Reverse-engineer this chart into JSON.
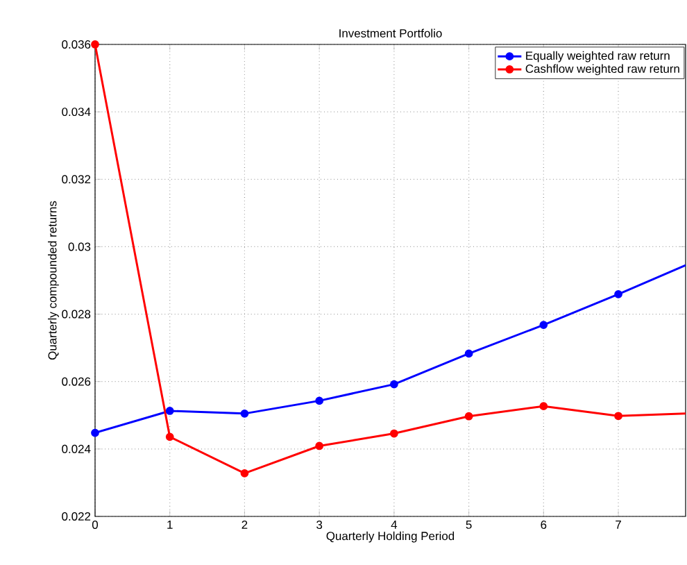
{
  "chart_data": {
    "type": "line",
    "title": "Investment Portfolio",
    "xlabel": "Quarterly Holding Period",
    "ylabel": "Quarterly compounded returns",
    "x": [
      0,
      1,
      2,
      3,
      4,
      5,
      6,
      7,
      7.9
    ],
    "series": [
      {
        "name": "Equally weighted raw return",
        "color": "#0000ff",
        "values": [
          0.02448,
          0.02513,
          0.02505,
          0.02543,
          0.02592,
          0.02683,
          0.02768,
          0.02859,
          0.02945
        ]
      },
      {
        "name": "Cashflow weighted raw return",
        "color": "#ff0000",
        "values": [
          0.036,
          0.02436,
          0.02328,
          0.02409,
          0.02446,
          0.02497,
          0.02527,
          0.02498,
          0.02505
        ]
      }
    ],
    "xlim": [
      0,
      7.9
    ],
    "xticks": [
      0,
      1,
      2,
      3,
      4,
      5,
      6,
      7
    ],
    "ylim": [
      0.022,
      0.036
    ],
    "yticks": [
      0.022,
      0.024,
      0.026,
      0.028,
      0.03,
      0.032,
      0.034,
      0.036
    ],
    "grid": true,
    "legend": "top right",
    "marker": "circle",
    "line_style": "solid"
  }
}
